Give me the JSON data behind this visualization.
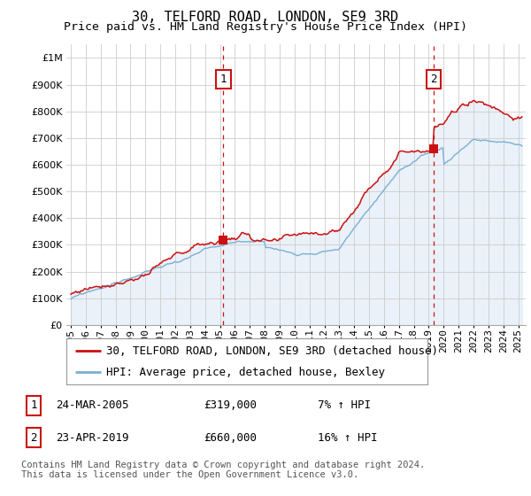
{
  "title": "30, TELFORD ROAD, LONDON, SE9 3RD",
  "subtitle": "Price paid vs. HM Land Registry's House Price Index (HPI)",
  "ytick_values": [
    0,
    100000,
    200000,
    300000,
    400000,
    500000,
    600000,
    700000,
    800000,
    900000,
    1000000
  ],
  "ylim": [
    0,
    1050000
  ],
  "xlim_start": 1994.7,
  "xlim_end": 2025.5,
  "hpi_color": "#7bafd4",
  "hpi_fill_color": "#dce8f5",
  "price_color": "#cc1111",
  "purchase1_year": 2005.23,
  "purchase1_price": 319000,
  "purchase2_year": 2019.31,
  "purchase2_price": 660000,
  "vline_color": "#cc1111",
  "vline_style": "--",
  "legend_label_red": "30, TELFORD ROAD, LONDON, SE9 3RD (detached house)",
  "legend_label_blue": "HPI: Average price, detached house, Bexley",
  "annotation1_num": "1",
  "annotation1_date": "24-MAR-2005",
  "annotation1_price": "£319,000",
  "annotation1_hpi": "7% ↑ HPI",
  "annotation2_num": "2",
  "annotation2_date": "23-APR-2019",
  "annotation2_price": "£660,000",
  "annotation2_hpi": "16% ↑ HPI",
  "footnote": "Contains HM Land Registry data © Crown copyright and database right 2024.\nThis data is licensed under the Open Government Licence v3.0.",
  "background_color": "#ffffff",
  "grid_color": "#cccccc",
  "title_fontsize": 11,
  "subtitle_fontsize": 9.5,
  "tick_fontsize": 8,
  "legend_fontsize": 9,
  "annotation_fontsize": 9,
  "footnote_fontsize": 7.5
}
